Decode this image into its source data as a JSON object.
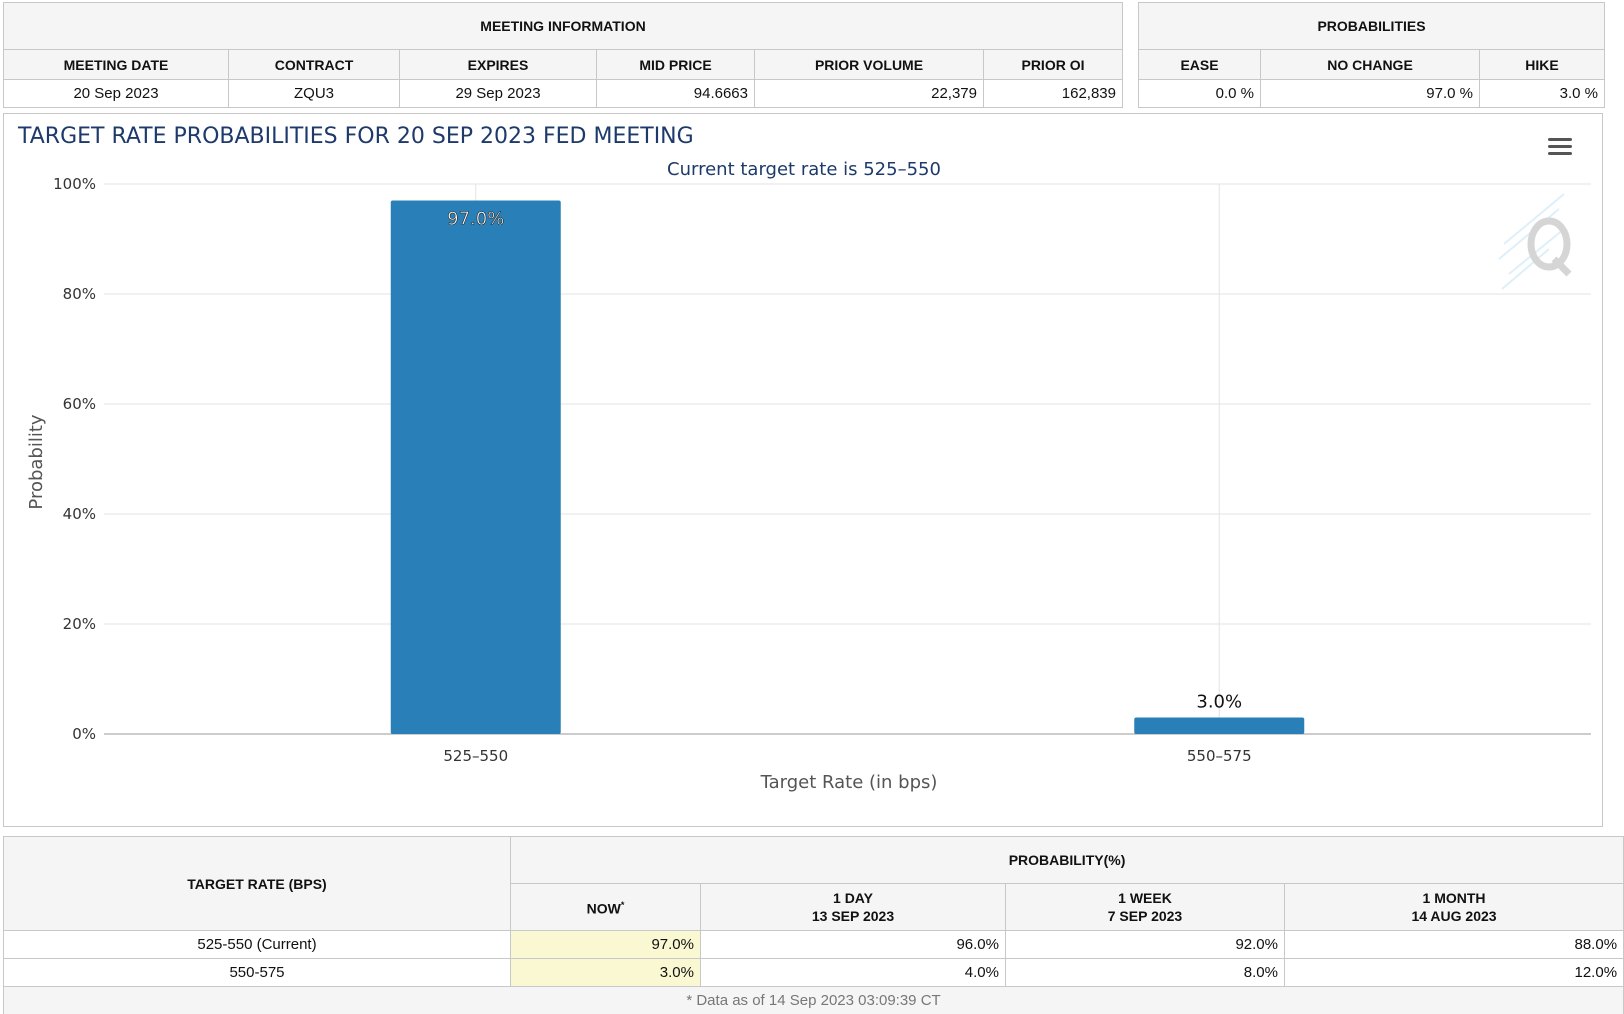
{
  "meeting_info": {
    "group_header": "MEETING INFORMATION",
    "headers": [
      "MEETING DATE",
      "CONTRACT",
      "EXPIRES",
      "MID PRICE",
      "PRIOR VOLUME",
      "PRIOR OI"
    ],
    "row": {
      "meeting_date": "20 Sep 2023",
      "contract": "ZQU3",
      "expires": "29 Sep 2023",
      "mid_price": "94.6663",
      "prior_volume": "22,379",
      "prior_oi": "162,839"
    }
  },
  "probabilities": {
    "group_header": "PROBABILITIES",
    "headers": [
      "EASE",
      "NO CHANGE",
      "HIKE"
    ],
    "row": {
      "ease": "0.0 %",
      "no_change": "97.0 %",
      "hike": "3.0 %"
    }
  },
  "menu_icon": "hamburger-menu-icon",
  "watermark_icon": "q-logo-watermark",
  "colors": {
    "bar": "#2980b9",
    "title": "#1d3a6b",
    "highlight": "#f9f8d2"
  },
  "chart_data": {
    "type": "bar",
    "title": "TARGET RATE PROBABILITIES FOR 20 SEP 2023 FED MEETING",
    "subtitle": "Current target rate is 525–550",
    "categories": [
      "525–550",
      "550–575"
    ],
    "values": [
      97.0,
      3.0
    ],
    "data_labels": [
      "97.0%",
      "3.0%"
    ],
    "xlabel": "Target Rate (in bps)",
    "ylabel": "Probability",
    "ylim": [
      0,
      100
    ],
    "yticks": [
      0,
      20,
      40,
      60,
      80,
      100
    ],
    "ytick_labels": [
      "0%",
      "20%",
      "40%",
      "60%",
      "80%",
      "100%"
    ],
    "grid": true
  },
  "history": {
    "left_header": "TARGET RATE (BPS)",
    "group_header": "PROBABILITY(%)",
    "columns": [
      {
        "line1": "NOW",
        "line2": "",
        "marker": "*"
      },
      {
        "line1": "1 DAY",
        "line2": "13 SEP 2023"
      },
      {
        "line1": "1 WEEK",
        "line2": "7 SEP 2023"
      },
      {
        "line1": "1 MONTH",
        "line2": "14 AUG 2023"
      }
    ],
    "rows": [
      {
        "rate": "525-550 (Current)",
        "now": "97.0%",
        "day": "96.0%",
        "week": "92.0%",
        "month": "88.0%"
      },
      {
        "rate": "550-575",
        "now": "3.0%",
        "day": "4.0%",
        "week": "8.0%",
        "month": "12.0%"
      }
    ],
    "footnote": "* Data as of 14 Sep 2023 03:09:39 CT"
  }
}
